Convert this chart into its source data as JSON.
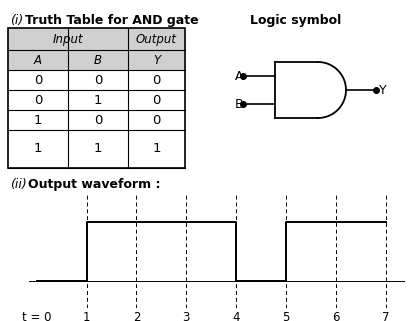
{
  "title_italic": "(i)",
  "title_main": "Truth Table for AND gate",
  "title_right": "Logic symbol",
  "subtitle_italic": "(ii)",
  "subtitle_main": "Output waveform :",
  "table_headers_row1_left": "Input",
  "table_headers_row1_right": "Output",
  "table_headers_row2": [
    "A",
    "B",
    "Y"
  ],
  "table_data": [
    [
      0,
      0,
      0
    ],
    [
      0,
      1,
      0
    ],
    [
      1,
      0,
      0
    ],
    [
      1,
      1,
      1
    ]
  ],
  "waveform_x": [
    0,
    1,
    1,
    4,
    4,
    5,
    5,
    7
  ],
  "waveform_y": [
    0,
    0,
    1,
    1,
    0,
    0,
    1,
    1
  ],
  "dashed_x": [
    1,
    2,
    3,
    4,
    5,
    6,
    7
  ],
  "xtick_labels": [
    "t = 0",
    "1",
    "2",
    "3",
    "4",
    "5",
    "6",
    "7"
  ],
  "xtick_positions": [
    0,
    1,
    2,
    3,
    4,
    5,
    6,
    7
  ],
  "bg_color": "#ffffff",
  "line_color": "#000000",
  "table_header_bg": "#d0d0d0"
}
